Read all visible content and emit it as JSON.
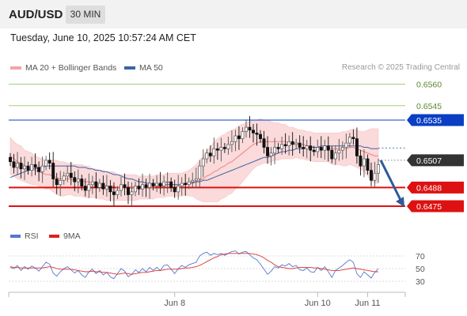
{
  "header": {
    "symbol": "AUD/USD",
    "timeframe": "30 MIN"
  },
  "timestamp": "Tuesday, June 10, 2025 10:57:24 AM CET",
  "legend": {
    "ma20_bb": "MA 20 + Bollinger Bands",
    "ma50": "MA 50",
    "credit": "Research © 2025 Trading Central",
    "rsi": "RSI",
    "ma9": "9MA"
  },
  "colors": {
    "candle_up": "#555555",
    "candle_down": "#111111",
    "bollinger_fill": "#fadada",
    "ma20": "#f08080",
    "ma50": "#3c64a5",
    "support": "#dd1111",
    "resistance": "#0a3fc4",
    "target_green": "#9ed27a",
    "current_price_box": "#333333",
    "arrow": "#2e5a99",
    "rsi_line": "#5577cc",
    "rsi_ma9": "#dd3333"
  },
  "chart_data": [
    {
      "type": "candlestick",
      "y_range": [
        0.6464,
        0.6568
      ],
      "price_levels": [
        {
          "value": "0.6560",
          "kind": "target"
        },
        {
          "value": "0.6545",
          "kind": "target"
        },
        {
          "value": "0.6535",
          "kind": "resistance"
        },
        {
          "value": "0.6507",
          "kind": "current"
        },
        {
          "value": "0.6488",
          "kind": "support"
        },
        {
          "value": "0.6475",
          "kind": "support"
        }
      ],
      "x_labels": [
        "Jun 8",
        "Jun 10",
        "Jun 11"
      ],
      "bars": 104,
      "bars_label_positions": [
        46,
        86,
        100
      ],
      "projection": {
        "from": 0.6507,
        "to": 0.6475
      },
      "close_path": [
        0.6506,
        0.6502,
        0.6505,
        0.6501,
        0.6503,
        0.65,
        0.6504,
        0.6502,
        0.6499,
        0.6503,
        0.6507,
        0.6505,
        0.6494,
        0.649,
        0.6493,
        0.6496,
        0.6498,
        0.6495,
        0.6492,
        0.6494,
        0.6489,
        0.6486,
        0.649,
        0.6492,
        0.6488,
        0.6491,
        0.6487,
        0.6489,
        0.6485,
        0.6483,
        0.6486,
        0.649,
        0.6488,
        0.6483,
        0.6485,
        0.6489,
        0.6487,
        0.649,
        0.6488,
        0.6491,
        0.6489,
        0.6491,
        0.6489,
        0.6492,
        0.6492,
        0.6488,
        0.6485,
        0.6489,
        0.6491,
        0.649,
        0.6492,
        0.6493,
        0.6494,
        0.6503,
        0.6508,
        0.6512,
        0.651,
        0.6515,
        0.6514,
        0.6516,
        0.6515,
        0.6518,
        0.652,
        0.6524,
        0.6522,
        0.6527,
        0.653,
        0.6528,
        0.6526,
        0.6525,
        0.6522,
        0.6516,
        0.651,
        0.6512,
        0.6516,
        0.6515,
        0.6518,
        0.6517,
        0.652,
        0.6518,
        0.6519,
        0.6516,
        0.6515,
        0.6517,
        0.6514,
        0.6513,
        0.6516,
        0.6514,
        0.6517,
        0.6514,
        0.6508,
        0.6512,
        0.6514,
        0.6516,
        0.6519,
        0.6523,
        0.6522,
        0.651,
        0.6503,
        0.6508,
        0.65,
        0.6493,
        0.6498,
        0.6504
      ],
      "ma20": [
        0.651,
        0.6508,
        0.6506,
        0.6505,
        0.6503,
        0.6502,
        0.6501,
        0.65,
        0.6499,
        0.6498,
        0.6497,
        0.6497,
        0.6496,
        0.6495,
        0.6494,
        0.6494,
        0.6494,
        0.6494,
        0.6493,
        0.6493,
        0.6493,
        0.6492,
        0.6492,
        0.6491,
        0.6491,
        0.649,
        0.649,
        0.6489,
        0.6489,
        0.6489,
        0.6488,
        0.6488,
        0.6488,
        0.6488,
        0.6488,
        0.6488,
        0.6488,
        0.6488,
        0.6488,
        0.6488,
        0.6488,
        0.6489,
        0.6489,
        0.6489,
        0.649,
        0.649,
        0.649,
        0.649,
        0.649,
        0.6491,
        0.6491,
        0.6492,
        0.6492,
        0.6493,
        0.6494,
        0.6496,
        0.6497,
        0.6499,
        0.65,
        0.6502,
        0.6503,
        0.6505,
        0.6506,
        0.6508,
        0.651,
        0.6512,
        0.6514,
        0.6516,
        0.6518,
        0.6519,
        0.652,
        0.652,
        0.652,
        0.652,
        0.652,
        0.652,
        0.652,
        0.652,
        0.6519,
        0.6519,
        0.6519,
        0.6518,
        0.6518,
        0.6517,
        0.6517,
        0.6516,
        0.6516,
        0.6516,
        0.6516,
        0.6516,
        0.6515,
        0.6515,
        0.6515,
        0.6515,
        0.6515,
        0.6516,
        0.6516,
        0.6515,
        0.6514,
        0.6513,
        0.6512,
        0.6511,
        0.651,
        0.651
      ],
      "ma50": [
        0.6495,
        0.6496,
        0.6497,
        0.6498,
        0.6499,
        0.65,
        0.6501,
        0.6501,
        0.6502,
        0.6502,
        0.6503,
        0.6503,
        0.6503,
        0.6503,
        0.6503,
        0.6503,
        0.6503,
        0.6503,
        0.6503,
        0.6502,
        0.6502,
        0.6502,
        0.6501,
        0.6501,
        0.65,
        0.65,
        0.6499,
        0.6499,
        0.6498,
        0.6497,
        0.6497,
        0.6496,
        0.6495,
        0.6494,
        0.6494,
        0.6493,
        0.6492,
        0.6492,
        0.6491,
        0.6491,
        0.649,
        0.649,
        0.649,
        0.649,
        0.649,
        0.649,
        0.649,
        0.649,
        0.649,
        0.649,
        0.6491,
        0.6491,
        0.6492,
        0.6492,
        0.6493,
        0.6493,
        0.6494,
        0.6495,
        0.6496,
        0.6497,
        0.6498,
        0.6499,
        0.65,
        0.6501,
        0.6502,
        0.6503,
        0.6504,
        0.6505,
        0.6506,
        0.6507,
        0.6508,
        0.6509,
        0.6509,
        0.651,
        0.6511,
        0.6512,
        0.6513,
        0.6513,
        0.6514,
        0.6514,
        0.6515,
        0.6515,
        0.6515,
        0.6516,
        0.6516,
        0.6516,
        0.6516,
        0.6517,
        0.6517,
        0.6517,
        0.6517,
        0.6517,
        0.6517,
        0.6517,
        0.6517,
        0.6517,
        0.6517,
        0.6517,
        0.6517,
        0.6516,
        0.6516,
        0.6515,
        0.6515,
        0.6515
      ],
      "bb_width": [
        0.0013,
        0.0012,
        0.0012,
        0.0012,
        0.0011,
        0.0011,
        0.0011,
        0.001,
        0.001,
        0.001,
        0.001,
        0.001,
        0.0011,
        0.0012,
        0.0012,
        0.0012,
        0.0011,
        0.0011,
        0.0011,
        0.0011,
        0.0011,
        0.0011,
        0.0011,
        0.001,
        0.001,
        0.001,
        0.001,
        0.001,
        0.001,
        0.001,
        0.0009,
        0.0009,
        0.0009,
        0.0009,
        0.0009,
        0.0009,
        0.0008,
        0.0008,
        0.0008,
        0.0008,
        0.0008,
        0.0008,
        0.0008,
        0.0008,
        0.0008,
        0.0008,
        0.0008,
        0.0008,
        0.0008,
        0.0008,
        0.0009,
        0.001,
        0.0012,
        0.0014,
        0.0016,
        0.0018,
        0.0019,
        0.0021,
        0.0022,
        0.0022,
        0.0022,
        0.0022,
        0.0022,
        0.0021,
        0.0021,
        0.002,
        0.0019,
        0.0018,
        0.0017,
        0.0016,
        0.0016,
        0.0015,
        0.0015,
        0.0014,
        0.0013,
        0.0013,
        0.0012,
        0.0012,
        0.0011,
        0.0011,
        0.001,
        0.001,
        0.001,
        0.001,
        0.001,
        0.001,
        0.001,
        0.001,
        0.001,
        0.001,
        0.0011,
        0.0011,
        0.0011,
        0.0012,
        0.0012,
        0.0012,
        0.0013,
        0.0013,
        0.0013,
        0.0014,
        0.0016,
        0.0018,
        0.0019,
        0.0019
      ]
    },
    {
      "type": "line",
      "name": "RSI",
      "y_ticks": [
        "70",
        "50",
        "30"
      ],
      "y_range": [
        20,
        80
      ],
      "rsi": [
        52,
        50,
        55,
        47,
        53,
        49,
        54,
        51,
        46,
        53,
        60,
        57,
        43,
        38,
        45,
        50,
        53,
        48,
        43,
        47,
        40,
        36,
        45,
        49,
        42,
        47,
        40,
        44,
        37,
        34,
        42,
        50,
        46,
        37,
        41,
        48,
        44,
        50,
        45,
        52,
        47,
        52,
        47,
        55,
        56,
        49,
        42,
        50,
        55,
        52,
        56,
        58,
        60,
        70,
        74,
        76,
        71,
        74,
        72,
        74,
        71,
        74,
        77,
        78,
        73,
        76,
        77,
        72,
        67,
        64,
        57,
        49,
        41,
        46,
        53,
        51,
        56,
        54,
        58,
        53,
        55,
        48,
        47,
        51,
        45,
        44,
        52,
        47,
        53,
        45,
        36,
        47,
        51,
        55,
        60,
        64,
        60,
        42,
        36,
        45,
        40,
        35,
        44,
        50
      ],
      "ma9": [
        53,
        52,
        52,
        51,
        51,
        51,
        51,
        51,
        51,
        51,
        52,
        53,
        52,
        50,
        49,
        49,
        49,
        49,
        48,
        47,
        46,
        45,
        45,
        46,
        45,
        45,
        44,
        44,
        43,
        42,
        41,
        42,
        43,
        42,
        41,
        42,
        43,
        44,
        44,
        45,
        46,
        47,
        47,
        48,
        49,
        49,
        49,
        49,
        50,
        51,
        51,
        52,
        53,
        55,
        58,
        61,
        64,
        67,
        69,
        72,
        73,
        74,
        74,
        74,
        74,
        74,
        74,
        74,
        73,
        72,
        70,
        67,
        63,
        60,
        56,
        53,
        52,
        51,
        50,
        50,
        51,
        52,
        52,
        52,
        52,
        51,
        51,
        50,
        49,
        48,
        47,
        47,
        47,
        48,
        49,
        50,
        51,
        50,
        49,
        48,
        47,
        46,
        45,
        45
      ]
    }
  ]
}
